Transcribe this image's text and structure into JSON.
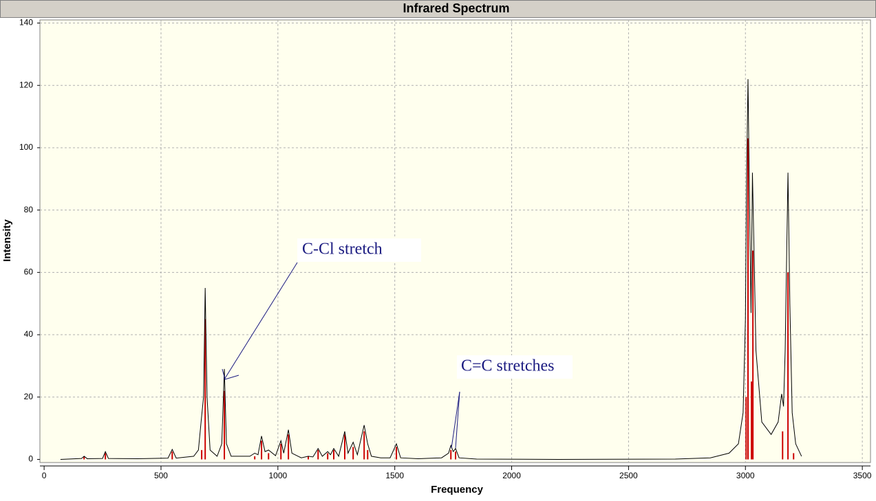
{
  "chart_data": {
    "type": "spectrum",
    "title": "Infrared Spectrum",
    "x_label": "Frequency",
    "y_label": "Intensity",
    "xlim": [
      -18,
      3535
    ],
    "ylim": [
      -1,
      141
    ],
    "xticks": [
      0,
      500,
      1000,
      1500,
      2000,
      2500,
      3000,
      3500
    ],
    "yticks": [
      0,
      20,
      40,
      60,
      80,
      100,
      120,
      140
    ],
    "grid": true,
    "annotations": [
      "C-Cl stretch",
      "C=C stretches"
    ],
    "series": [
      {
        "style": "sticks",
        "color": "#cc0000",
        "x": [
          171,
          262,
          548,
          674,
          689,
          771,
          901,
          930,
          960,
          1013,
          1045,
          1130,
          1172,
          1213,
          1239,
          1286,
          1322,
          1369,
          1384,
          1507,
          1740,
          1760,
          3003,
          3011,
          3026,
          3032,
          3159,
          3182,
          3206
        ],
        "values": [
          1,
          2,
          2.5,
          3,
          45,
          22,
          1,
          6,
          2,
          5,
          8,
          1,
          3,
          2,
          3,
          8,
          4,
          9,
          3,
          4,
          3,
          2.5,
          20,
          103,
          25,
          67,
          9,
          60,
          2
        ]
      },
      {
        "style": "line",
        "color": "#000000",
        "x": [
          70,
          160,
          171,
          185,
          250,
          262,
          275,
          400,
          530,
          548,
          565,
          640,
          660,
          674,
          682,
          689,
          697,
          710,
          740,
          760,
          771,
          780,
          800,
          880,
          901,
          915,
          930,
          945,
          960,
          990,
          1013,
          1025,
          1045,
          1060,
          1100,
          1130,
          1150,
          1172,
          1190,
          1213,
          1225,
          1239,
          1260,
          1286,
          1300,
          1322,
          1340,
          1369,
          1384,
          1400,
          1440,
          1480,
          1507,
          1525,
          1600,
          1700,
          1730,
          1740,
          1750,
          1760,
          1775,
          1850,
          2200,
          2700,
          2850,
          2930,
          2970,
          2990,
          3000,
          3005,
          3011,
          3018,
          3024,
          3030,
          3036,
          3045,
          3070,
          3110,
          3140,
          3155,
          3163,
          3170,
          3182,
          3190,
          3200,
          3215,
          3240
        ],
        "values": [
          0,
          0.3,
          1,
          0.2,
          0.3,
          2.5,
          0.3,
          0.2,
          0.4,
          3.2,
          0.4,
          1,
          3,
          14,
          20,
          55,
          20,
          3,
          1,
          5,
          29,
          5,
          1,
          1,
          2,
          1.5,
          7.5,
          2.5,
          3,
          1.2,
          6,
          2,
          9.5,
          2,
          0.5,
          1,
          0.8,
          3.5,
          1,
          2.5,
          1.5,
          3.5,
          1,
          9,
          2,
          5.5,
          1.5,
          11,
          5,
          1,
          0.5,
          0.5,
          5,
          0.5,
          0.2,
          0.5,
          2,
          4.5,
          2.5,
          3.5,
          0.5,
          0.1,
          0,
          0.1,
          0.5,
          2,
          5,
          15,
          45,
          90,
          122,
          80,
          47,
          92,
          70,
          35,
          12,
          8,
          12,
          21,
          17,
          35,
          92,
          50,
          15,
          5,
          1
        ]
      }
    ]
  }
}
